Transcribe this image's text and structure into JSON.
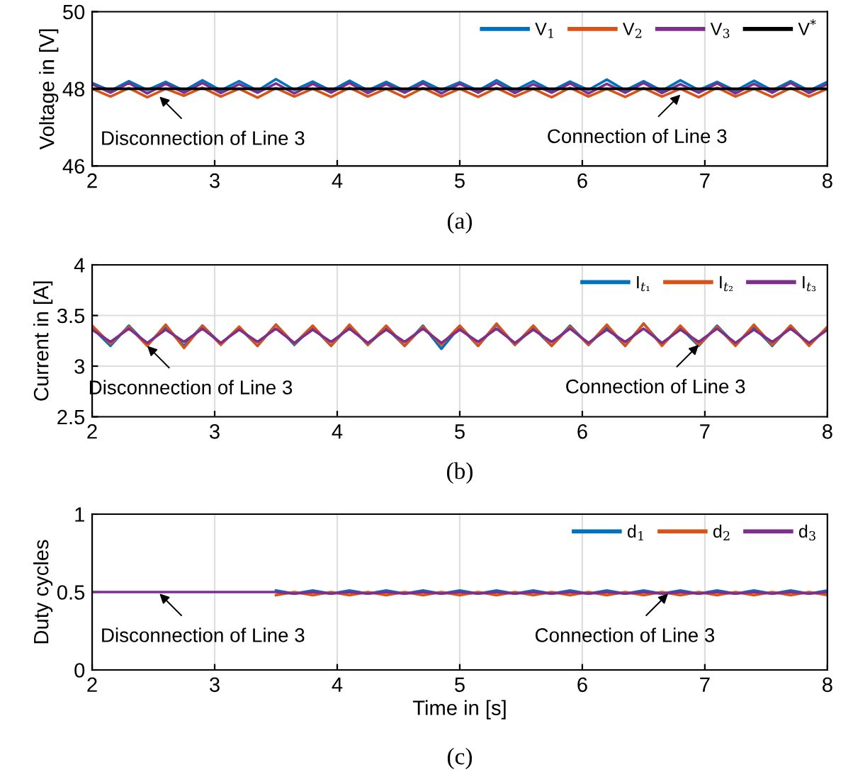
{
  "chart_data": [
    {
      "type": "line",
      "ylabel": "Voltage in [V]",
      "xlim": [
        2,
        8
      ],
      "xticks": [
        2,
        3,
        4,
        5,
        6,
        7,
        8
      ],
      "ylim": [
        46,
        50
      ],
      "yticks": [
        46,
        48,
        50
      ],
      "grid": true,
      "legend": "top right",
      "x": [
        2,
        2.15,
        2.3,
        2.45,
        2.6,
        2.75,
        2.9,
        3.05,
        3.2,
        3.35,
        3.5,
        3.65,
        3.8,
        3.95,
        4.1,
        4.25,
        4.4,
        4.55,
        4.7,
        4.85,
        5,
        5.15,
        5.3,
        5.45,
        5.6,
        5.75,
        5.9,
        6.05,
        6.2,
        6.35,
        6.5,
        6.65,
        6.8,
        6.95,
        7.1,
        7.25,
        7.4,
        7.55,
        7.7,
        7.85,
        8
      ],
      "series": [
        {
          "name": "V$_{1}$",
          "color": "#0072bd",
          "values": [
            48.15,
            47.95,
            48.2,
            47.97,
            48.18,
            47.95,
            48.22,
            47.96,
            48.2,
            47.95,
            48.25,
            47.97,
            48.19,
            47.95,
            48.21,
            47.96,
            48.18,
            47.95,
            48.2,
            47.97,
            48.17,
            47.95,
            48.22,
            47.96,
            48.2,
            47.95,
            48.19,
            47.97,
            48.24,
            47.96,
            48.2,
            47.95,
            48.22,
            47.97,
            48.18,
            47.95,
            48.21,
            47.96,
            48.2,
            47.95,
            48.18
          ]
        },
        {
          "name": "V$_{2}$",
          "color": "#d95319",
          "values": [
            48.0,
            47.8,
            48.02,
            47.78,
            48.0,
            47.82,
            48.03,
            47.8,
            48.0,
            47.77,
            48.02,
            47.8,
            48.0,
            47.79,
            48.03,
            47.8,
            48.0,
            47.78,
            48.02,
            47.8,
            48.0,
            47.79,
            48.02,
            47.8,
            48.0,
            47.78,
            48.03,
            47.8,
            48.0,
            47.79,
            48.02,
            47.8,
            48.0,
            47.78,
            48.03,
            47.8,
            48.0,
            47.79,
            48.02,
            47.8,
            48.0
          ]
        },
        {
          "name": "V$_{3}$",
          "color": "#7e2f8e",
          "values": [
            48.12,
            47.9,
            48.15,
            47.88,
            48.13,
            47.9,
            48.15,
            47.89,
            48.12,
            47.9,
            48.14,
            47.88,
            48.13,
            47.9,
            48.15,
            47.89,
            48.12,
            47.9,
            48.14,
            47.88,
            48.13,
            47.9,
            48.15,
            47.89,
            48.12,
            47.9,
            48.14,
            47.88,
            48.13,
            47.9,
            48.15,
            47.89,
            48.12,
            47.9,
            48.14,
            47.88,
            48.13,
            47.9,
            48.15,
            47.89,
            48.12
          ]
        },
        {
          "name": "V$^{*}$",
          "color": "#000000",
          "values": [
            48,
            48,
            48,
            48,
            48,
            48,
            48,
            48,
            48,
            48,
            48,
            48,
            48,
            48,
            48,
            48,
            48,
            48,
            48,
            48,
            48,
            48,
            48,
            48,
            48,
            48,
            48,
            48,
            48,
            48,
            48,
            48,
            48,
            48,
            48,
            48,
            48,
            48,
            48,
            48,
            48
          ]
        }
      ],
      "annotations": [
        "(a)",
        {
          "text": "Disconnection of Line 3",
          "x": 2.55,
          "y": 47.8
        },
        {
          "text": "Connection of Line 3",
          "x": 6.8,
          "y": 47.85
        }
      ]
    },
    {
      "type": "line",
      "ylabel": "Current in [A]",
      "xlim": [
        2,
        8
      ],
      "xticks": [
        2,
        3,
        4,
        5,
        6,
        7,
        8
      ],
      "ylim": [
        2.5,
        4
      ],
      "yticks": [
        2.5,
        3,
        3.5,
        4
      ],
      "grid": true,
      "legend": "top right",
      "x": [
        2,
        2.15,
        2.3,
        2.45,
        2.6,
        2.75,
        2.9,
        3.05,
        3.2,
        3.35,
        3.5,
        3.65,
        3.8,
        3.95,
        4.1,
        4.25,
        4.4,
        4.55,
        4.7,
        4.85,
        5,
        5.15,
        5.3,
        5.45,
        5.6,
        5.75,
        5.9,
        6.05,
        6.2,
        6.35,
        6.5,
        6.65,
        6.8,
        6.95,
        7.1,
        7.25,
        7.4,
        7.55,
        7.7,
        7.85,
        8
      ],
      "series": [
        {
          "name": "I$_{t₁}$",
          "color": "#0072bd",
          "values": [
            3.38,
            3.2,
            3.4,
            3.21,
            3.39,
            3.2,
            3.4,
            3.22,
            3.38,
            3.2,
            3.41,
            3.21,
            3.39,
            3.2,
            3.4,
            3.21,
            3.38,
            3.2,
            3.4,
            3.17,
            3.39,
            3.2,
            3.41,
            3.21,
            3.38,
            3.2,
            3.4,
            3.21,
            3.39,
            3.2,
            3.42,
            3.21,
            3.38,
            3.2,
            3.4,
            3.21,
            3.39,
            3.2,
            3.4,
            3.21,
            3.38
          ]
        },
        {
          "name": "I$_{t₂}$",
          "color": "#d95319",
          "values": [
            3.4,
            3.22,
            3.39,
            3.2,
            3.41,
            3.18,
            3.4,
            3.21,
            3.39,
            3.2,
            3.41,
            3.22,
            3.4,
            3.2,
            3.41,
            3.21,
            3.4,
            3.2,
            3.39,
            3.21,
            3.4,
            3.2,
            3.42,
            3.21,
            3.4,
            3.2,
            3.39,
            3.21,
            3.41,
            3.2,
            3.42,
            3.2,
            3.4,
            3.21,
            3.39,
            3.2,
            3.41,
            3.21,
            3.4,
            3.2,
            3.39
          ]
        },
        {
          "name": "I$_{t₃}$",
          "color": "#7e2f8e",
          "values": [
            3.36,
            3.24,
            3.37,
            3.23,
            3.36,
            3.24,
            3.37,
            3.23,
            3.36,
            3.24,
            3.37,
            3.23,
            3.36,
            3.24,
            3.37,
            3.23,
            3.36,
            3.24,
            3.37,
            3.23,
            3.36,
            3.24,
            3.37,
            3.23,
            3.36,
            3.24,
            3.37,
            3.23,
            3.36,
            3.24,
            3.37,
            3.23,
            3.36,
            3.24,
            3.37,
            3.23,
            3.36,
            3.24,
            3.37,
            3.23,
            3.36
          ]
        }
      ],
      "annotations": [
        "(b)",
        {
          "text": "Disconnection of Line 3",
          "x": 2.45,
          "y": 3.2
        },
        {
          "text": "Connection of Line 3",
          "x": 6.95,
          "y": 3.21
        }
      ]
    },
    {
      "type": "line",
      "ylabel": "Duty cycles",
      "xlabel": "Time in [s]",
      "xlim": [
        2,
        8
      ],
      "xticks": [
        2,
        3,
        4,
        5,
        6,
        7,
        8
      ],
      "ylim": [
        0,
        1
      ],
      "yticks": [
        0,
        0.5,
        1
      ],
      "grid": true,
      "legend": "top right",
      "x": [
        2,
        2.15,
        2.3,
        2.45,
        2.6,
        2.75,
        2.9,
        3.05,
        3.2,
        3.35,
        3.5,
        3.65,
        3.8,
        3.95,
        4.1,
        4.25,
        4.4,
        4.55,
        4.7,
        4.85,
        5,
        5.15,
        5.3,
        5.45,
        5.6,
        5.75,
        5.9,
        6.05,
        6.2,
        6.35,
        6.5,
        6.65,
        6.8,
        6.95,
        7.1,
        7.25,
        7.4,
        7.55,
        7.7,
        7.85,
        8
      ],
      "series": [
        {
          "name": "d$_{1}$",
          "color": "#0072bd",
          "values": [
            null,
            null,
            null,
            null,
            null,
            null,
            null,
            null,
            null,
            null,
            0.51,
            0.49,
            0.51,
            0.49,
            0.51,
            0.49,
            0.51,
            0.49,
            0.51,
            0.49,
            0.51,
            0.49,
            0.51,
            0.49,
            0.51,
            0.49,
            0.51,
            0.49,
            0.51,
            0.49,
            0.51,
            0.49,
            0.51,
            0.49,
            0.51,
            0.49,
            0.51,
            0.49,
            0.51,
            0.49,
            0.51
          ]
        },
        {
          "name": "d$_{2}$",
          "color": "#d95319",
          "values": [
            null,
            null,
            null,
            null,
            null,
            null,
            null,
            null,
            null,
            null,
            0.48,
            0.5,
            0.48,
            0.5,
            0.48,
            0.5,
            0.48,
            0.5,
            0.48,
            0.5,
            0.48,
            0.5,
            0.48,
            0.5,
            0.48,
            0.5,
            0.48,
            0.5,
            0.48,
            0.5,
            0.48,
            0.5,
            0.48,
            0.5,
            0.48,
            0.5,
            0.48,
            0.5,
            0.48,
            0.5,
            0.48
          ]
        },
        {
          "name": "d$_{3}$",
          "color": "#7e2f8e",
          "values": [
            0.5,
            0.5,
            0.5,
            0.5,
            0.5,
            0.5,
            0.5,
            0.5,
            0.5,
            0.5,
            0.5,
            0.49,
            0.5,
            0.49,
            0.5,
            0.49,
            0.5,
            0.49,
            0.5,
            0.49,
            0.5,
            0.49,
            0.5,
            0.49,
            0.5,
            0.49,
            0.5,
            0.49,
            0.5,
            0.49,
            0.5,
            0.49,
            0.5,
            0.49,
            0.5,
            0.49,
            0.5,
            0.49,
            0.5,
            0.49,
            0.5
          ]
        }
      ],
      "annotations": [
        "(c)",
        {
          "text": "Disconnection of Line 3",
          "x": 2.55,
          "y": 0.49
        },
        {
          "text": "Connection of Line 3",
          "x": 6.7,
          "y": 0.49
        }
      ]
    }
  ]
}
